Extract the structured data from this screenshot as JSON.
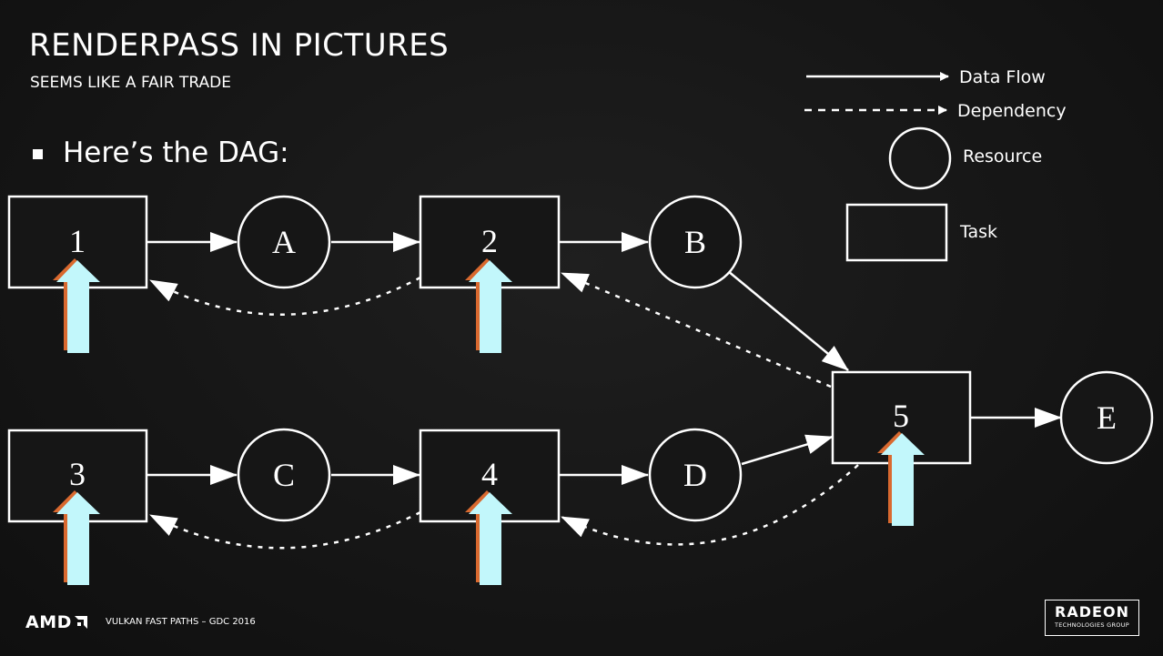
{
  "slide": {
    "title": "RENDERPASS IN PICTURES",
    "subtitle": "SEEMS LIKE A FAIR TRADE",
    "bullet": "Here’s the DAG:"
  },
  "legend": {
    "data_flow": "Data Flow",
    "dependency": "Dependency",
    "resource": "Resource",
    "task": "Task"
  },
  "diagram": {
    "tasks": [
      "1",
      "2",
      "3",
      "4",
      "5"
    ],
    "resources": [
      "A",
      "B",
      "C",
      "D",
      "E"
    ],
    "data_flow_edges": [
      [
        "1",
        "A"
      ],
      [
        "A",
        "2"
      ],
      [
        "2",
        "B"
      ],
      [
        "B",
        "5"
      ],
      [
        "3",
        "C"
      ],
      [
        "C",
        "4"
      ],
      [
        "4",
        "D"
      ],
      [
        "D",
        "5"
      ],
      [
        "5",
        "E"
      ]
    ],
    "dependency_edges": [
      [
        "2",
        "1"
      ],
      [
        "5",
        "2"
      ],
      [
        "4",
        "3"
      ],
      [
        "5",
        "4"
      ]
    ],
    "colors": {
      "background": "#161616",
      "stroke": "#ffffff",
      "arrow_fill": "#c2f7fb",
      "arrow_shadow": "#d9692f"
    }
  },
  "footer": {
    "brand": "AMD",
    "event": "VULKAN FAST PATHS – GDC 2016",
    "badge_main": "RADEON",
    "badge_sub": "TECHNOLOGIES GROUP"
  }
}
